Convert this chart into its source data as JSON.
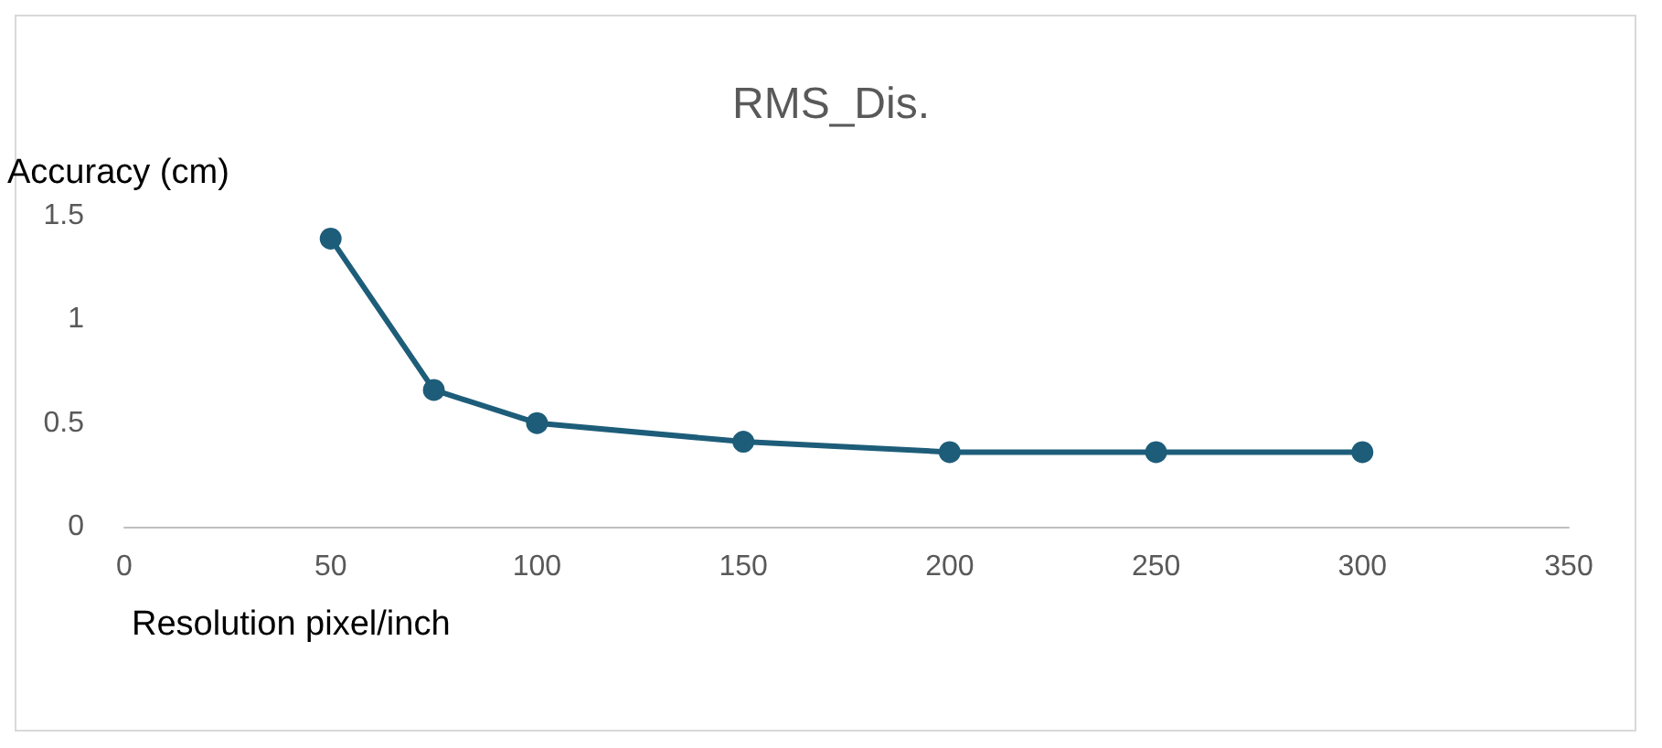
{
  "chart_data": {
    "type": "line",
    "title": "RMS_Dis.",
    "xlabel": "Resolution pixel/inch",
    "ylabel": "Accuracy (cm)",
    "x": [
      50,
      75,
      100,
      150,
      200,
      250,
      300
    ],
    "series": [
      {
        "color": "#1d5d79",
        "values": [
          1.39,
          0.66,
          0.5,
          0.41,
          0.36,
          0.36,
          0.36
        ]
      }
    ],
    "xlim": [
      0,
      350
    ],
    "xticks": [
      0,
      50,
      100,
      150,
      200,
      250,
      300,
      350
    ],
    "ylim": [
      0,
      1.5
    ],
    "yticks": [
      0,
      0.5,
      1,
      1.5
    ],
    "grid": false,
    "marker": "circle",
    "line_style": "solid"
  }
}
